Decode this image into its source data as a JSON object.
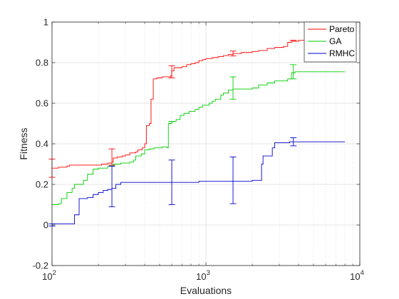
{
  "chart_data": {
    "type": "line",
    "title": "",
    "xlabel": "Evaluations",
    "ylabel": "Fitness",
    "xscale": "log",
    "xlim": [
      100,
      10000
    ],
    "ylim": [
      -0.2,
      1
    ],
    "x_ticks": [
      {
        "value": 100,
        "base": "10",
        "exp": "2"
      },
      {
        "value": 1000,
        "base": "10",
        "exp": "3"
      },
      {
        "value": 10000,
        "base": "10",
        "exp": "4"
      }
    ],
    "y_ticks": [
      {
        "value": -0.2,
        "label": "-0.2"
      },
      {
        "value": 0,
        "label": "0"
      },
      {
        "value": 0.2,
        "label": "0.2"
      },
      {
        "value": 0.4,
        "label": "0.4"
      },
      {
        "value": 0.6,
        "label": "0.6"
      },
      {
        "value": 0.8,
        "label": "0.8"
      },
      {
        "value": 1,
        "label": "1"
      }
    ],
    "grid": true,
    "minor_grid": true,
    "legend": "top-right",
    "series": [
      {
        "name": "Pareto",
        "color": "#ff0000",
        "points": [
          [
            100,
            0.28
          ],
          [
            105,
            0.28
          ],
          [
            110,
            0.285
          ],
          [
            125,
            0.29
          ],
          [
            130,
            0.295
          ],
          [
            200,
            0.295
          ],
          [
            210,
            0.3
          ],
          [
            230,
            0.305
          ],
          [
            245,
            0.31
          ],
          [
            250,
            0.33
          ],
          [
            265,
            0.335
          ],
          [
            285,
            0.34
          ],
          [
            300,
            0.345
          ],
          [
            320,
            0.355
          ],
          [
            350,
            0.36
          ],
          [
            360,
            0.37
          ],
          [
            385,
            0.38
          ],
          [
            400,
            0.4
          ],
          [
            410,
            0.49
          ],
          [
            430,
            0.5
          ],
          [
            440,
            0.62
          ],
          [
            455,
            0.72
          ],
          [
            480,
            0.725
          ],
          [
            520,
            0.73
          ],
          [
            560,
            0.73
          ],
          [
            590,
            0.735
          ],
          [
            600,
            0.76
          ],
          [
            620,
            0.775
          ],
          [
            700,
            0.78
          ],
          [
            750,
            0.79
          ],
          [
            800,
            0.795
          ],
          [
            850,
            0.8
          ],
          [
            900,
            0.81
          ],
          [
            950,
            0.815
          ],
          [
            1000,
            0.82
          ],
          [
            1100,
            0.825
          ],
          [
            1200,
            0.83
          ],
          [
            1300,
            0.835
          ],
          [
            1400,
            0.84
          ],
          [
            1500,
            0.845
          ],
          [
            1700,
            0.85
          ],
          [
            2000,
            0.855
          ],
          [
            2200,
            0.86
          ],
          [
            2500,
            0.87
          ],
          [
            2800,
            0.875
          ],
          [
            3200,
            0.88
          ],
          [
            3400,
            0.9
          ],
          [
            3600,
            0.905
          ],
          [
            4000,
            0.91
          ],
          [
            5000,
            0.91
          ],
          [
            6000,
            0.915
          ],
          [
            8000,
            0.915
          ]
        ],
        "error_bars": [
          [
            100,
            0.28,
            0.045
          ],
          [
            245,
            0.335,
            0.04
          ],
          [
            600,
            0.755,
            0.03
          ],
          [
            1500,
            0.845,
            0.012
          ],
          [
            3700,
            0.91,
            0.0
          ]
        ]
      },
      {
        "name": "GA",
        "color": "#00cc00",
        "points": [
          [
            100,
            0.1
          ],
          [
            110,
            0.105
          ],
          [
            115,
            0.13
          ],
          [
            125,
            0.16
          ],
          [
            135,
            0.18
          ],
          [
            140,
            0.2
          ],
          [
            160,
            0.22
          ],
          [
            170,
            0.25
          ],
          [
            185,
            0.275
          ],
          [
            200,
            0.28
          ],
          [
            230,
            0.29
          ],
          [
            250,
            0.3
          ],
          [
            280,
            0.305
          ],
          [
            320,
            0.31
          ],
          [
            340,
            0.32
          ],
          [
            350,
            0.34
          ],
          [
            380,
            0.35
          ],
          [
            400,
            0.37
          ],
          [
            430,
            0.375
          ],
          [
            460,
            0.38
          ],
          [
            520,
            0.385
          ],
          [
            560,
            0.38
          ],
          [
            570,
            0.5
          ],
          [
            600,
            0.51
          ],
          [
            640,
            0.52
          ],
          [
            680,
            0.54
          ],
          [
            720,
            0.55
          ],
          [
            780,
            0.56
          ],
          [
            850,
            0.57
          ],
          [
            900,
            0.58
          ],
          [
            950,
            0.59
          ],
          [
            1050,
            0.6
          ],
          [
            1100,
            0.61
          ],
          [
            1150,
            0.62
          ],
          [
            1250,
            0.64
          ],
          [
            1300,
            0.65
          ],
          [
            1400,
            0.665
          ],
          [
            1500,
            0.67
          ],
          [
            2000,
            0.675
          ],
          [
            2200,
            0.69
          ],
          [
            2500,
            0.7
          ],
          [
            2800,
            0.71
          ],
          [
            3400,
            0.72
          ],
          [
            3600,
            0.75
          ],
          [
            3800,
            0.755
          ],
          [
            8000,
            0.755
          ]
        ],
        "error_bars": [
          [
            245,
            0.29,
            0.0
          ],
          [
            600,
            0.51,
            0.0
          ],
          [
            1500,
            0.675,
            0.055
          ],
          [
            3700,
            0.755,
            0.035
          ]
        ]
      },
      {
        "name": "RMHC",
        "color": "#0000cc",
        "points": [
          [
            100,
            0.005
          ],
          [
            130,
            0.005
          ],
          [
            140,
            0.05
          ],
          [
            150,
            0.13
          ],
          [
            170,
            0.135
          ],
          [
            185,
            0.15
          ],
          [
            200,
            0.16
          ],
          [
            215,
            0.17
          ],
          [
            230,
            0.175
          ],
          [
            245,
            0.18
          ],
          [
            260,
            0.2
          ],
          [
            280,
            0.21
          ],
          [
            500,
            0.21
          ],
          [
            600,
            0.21
          ],
          [
            900,
            0.215
          ],
          [
            1500,
            0.215
          ],
          [
            2000,
            0.22
          ],
          [
            2250,
            0.22
          ],
          [
            2300,
            0.3
          ],
          [
            2350,
            0.34
          ],
          [
            2600,
            0.34
          ],
          [
            2700,
            0.38
          ],
          [
            2800,
            0.405
          ],
          [
            3500,
            0.41
          ],
          [
            8000,
            0.41
          ]
        ],
        "error_bars": [
          [
            100,
            0.0,
            0.005
          ],
          [
            245,
            0.19,
            0.1
          ],
          [
            600,
            0.21,
            0.11
          ],
          [
            1500,
            0.22,
            0.115
          ],
          [
            3700,
            0.41,
            0.02
          ]
        ]
      }
    ]
  }
}
